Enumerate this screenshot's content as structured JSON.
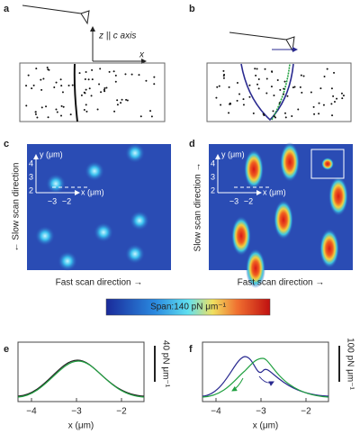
{
  "panel_a": {
    "label": "a",
    "axis_z": "z || c axis",
    "axis_x": "x"
  },
  "panel_b": {
    "label": "b"
  },
  "panel_c": {
    "label": "c",
    "y_axis": "y (μm)",
    "y_ticks": [
      "4",
      "3",
      "2"
    ],
    "x_ticks": [
      "−3",
      "−2"
    ],
    "x_axis": "x (μm)",
    "slow_scan": "← Slow scan direction",
    "fast_scan": "Fast scan direction →"
  },
  "panel_d": {
    "label": "d",
    "y_axis": "y (μm)",
    "y_ticks": [
      "4",
      "3",
      "2"
    ],
    "x_ticks": [
      "−3",
      "−2"
    ],
    "x_axis": "x (μm)",
    "slow_scan": "Slow scan direction →",
    "fast_scan": "Fast scan direction →"
  },
  "colorbar": {
    "label": "Span:140 pN μm⁻¹"
  },
  "panel_e": {
    "label": "e",
    "x_ticks": [
      "−4",
      "−3",
      "−2"
    ],
    "x_axis": "x (μm)",
    "scale_bar": "40 pN μm⁻¹"
  },
  "panel_f": {
    "label": "f",
    "x_ticks": [
      "−4",
      "−3",
      "−2"
    ],
    "x_axis": "x (μm)",
    "scale_bar": "100 pN μm⁻¹"
  }
}
